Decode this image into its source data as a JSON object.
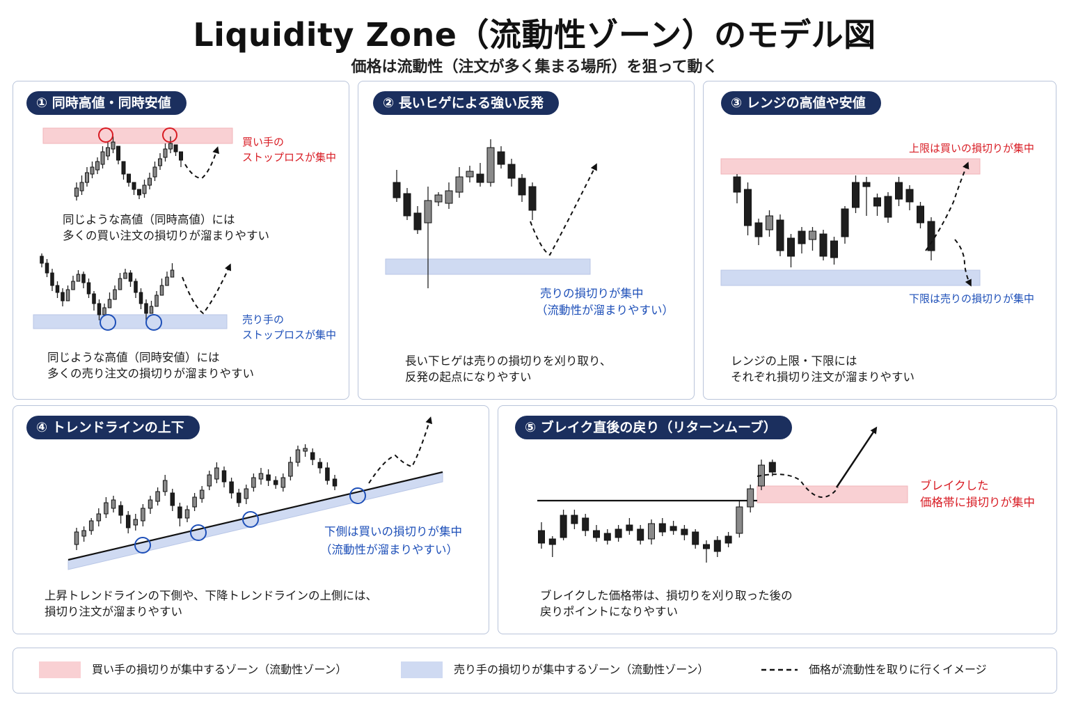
{
  "title": "Liquidity Zone（流動性ゾーン）のモデル図",
  "subtitle": "価格は流動性（注文が多く集まる場所）を狙って動く",
  "colors": {
    "buy_zone": "#f9d0d3",
    "sell_zone": "#cfdaf2",
    "navy": "#1b2f5e",
    "red": "#d81b23",
    "blue": "#1d4fb8"
  },
  "panel1": {
    "heading": "① 同時高値・同時安値",
    "note_top_1": "買い手の",
    "note_top_2": "ストップロスが集中",
    "desc_top_1": "同じような高値（同時高値）には",
    "desc_top_2": "多くの買い注文の損切りが溜まりやすい",
    "note_bottom_1": "売り手の",
    "note_bottom_2": "ストップロスが集中",
    "desc_bottom_1": "同じような高値（同時安値）には",
    "desc_bottom_2": "多くの売り注文の損切りが溜まりやすい"
  },
  "panel2": {
    "heading": "② 長いヒゲによる強い反発",
    "note_1": "売りの損切りが集中",
    "note_2": "（流動性が溜まりやすい）",
    "desc_1": "長い下ヒゲは売りの損切りを刈り取り、",
    "desc_2": "反発の起点になりやすい"
  },
  "panel3": {
    "heading": "③ レンジの高値や安値",
    "note_top": "上限は買いの損切りが集中",
    "note_bottom": "下限は売りの損切りが集中",
    "desc_1": "レンジの上限・下限には",
    "desc_2": "それぞれ損切り注文が溜まりやすい"
  },
  "panel4": {
    "heading": "④ トレンドラインの上下",
    "note_1": "下側は買いの損切りが集中",
    "note_2": "（流動性が溜まりやすい）",
    "desc_1": "上昇トレンドラインの下側や、下降トレンドラインの上側には、",
    "desc_2": "損切り注文が溜まりやすい"
  },
  "panel5": {
    "heading": "⑤ ブレイク直後の戻り（リターンムーブ）",
    "note_1": "ブレイクした",
    "note_2": "価格帯に損切りが集中",
    "desc_1": "ブレイクした価格帯は、損切りを刈り取った後の",
    "desc_2": "戻りポイントになりやすい"
  },
  "legend": {
    "buy": "買い手の損切りが集中するゾーン（流動性ゾーン）",
    "sell": "売り手の損切りが集中するゾーン（流動性ゾーン）",
    "dashed": "価格が流動性を取りに行くイメージ"
  }
}
